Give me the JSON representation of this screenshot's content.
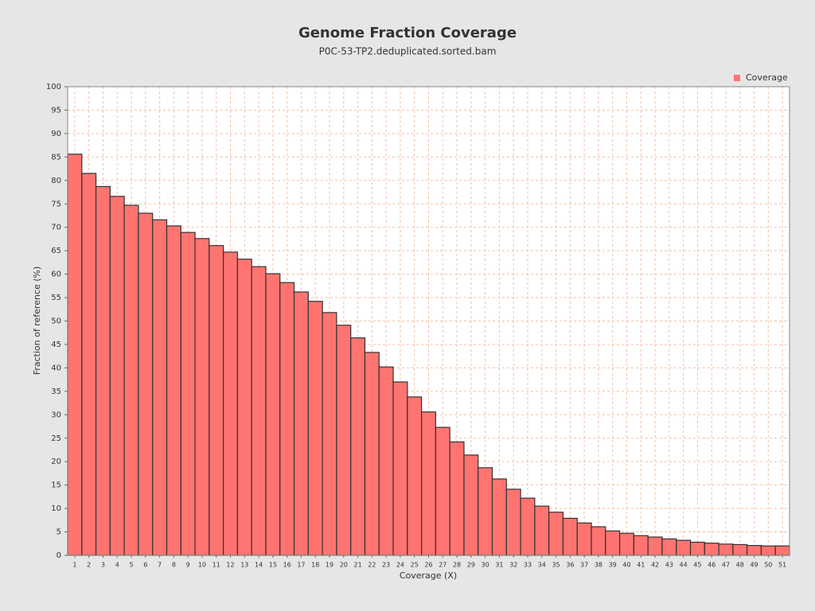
{
  "chart_data": {
    "type": "bar",
    "title": "Genome Fraction Coverage",
    "subtitle": "P0C-53-TP2.deduplicated.sorted.bam",
    "x_label": "Coverage (X)",
    "y_label": "Fraction of reference (%)",
    "categories": [
      1,
      2,
      3,
      4,
      5,
      6,
      7,
      8,
      9,
      10,
      11,
      12,
      13,
      14,
      15,
      16,
      17,
      18,
      19,
      20,
      21,
      22,
      23,
      24,
      25,
      26,
      27,
      28,
      29,
      30,
      31,
      32,
      33,
      34,
      35,
      36,
      37,
      38,
      39,
      40,
      41,
      42,
      43,
      44,
      45,
      46,
      47,
      48,
      49,
      50,
      51
    ],
    "series": [
      {
        "name": "Coverage",
        "color": "#ff7470",
        "values": [
          85.6,
          81.5,
          78.7,
          76.6,
          74.7,
          73.0,
          71.6,
          70.3,
          68.9,
          67.6,
          66.1,
          64.7,
          63.2,
          61.6,
          60.1,
          58.2,
          56.2,
          54.2,
          51.8,
          49.1,
          46.4,
          43.3,
          40.2,
          37.0,
          33.8,
          30.6,
          27.3,
          24.2,
          21.4,
          18.7,
          16.3,
          14.1,
          12.2,
          10.5,
          9.2,
          7.9,
          6.9,
          6.1,
          5.2,
          4.7,
          4.2,
          3.9,
          3.5,
          3.2,
          2.8,
          2.6,
          2.4,
          2.3,
          2.1,
          2.0,
          2.0
        ]
      }
    ],
    "ylim": [
      0,
      100
    ],
    "yticks": [
      0,
      5,
      10,
      15,
      20,
      25,
      30,
      35,
      40,
      45,
      50,
      55,
      60,
      65,
      70,
      75,
      80,
      85,
      90,
      95,
      100
    ],
    "grid": true,
    "legend": "top-right"
  }
}
